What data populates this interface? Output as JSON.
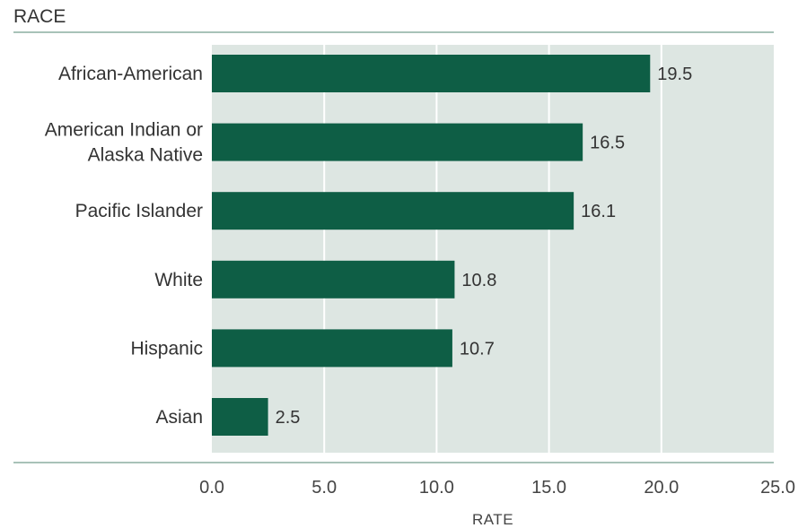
{
  "chart_data": {
    "type": "bar",
    "orientation": "horizontal",
    "categories": [
      "African-American",
      "American Indian or Alaska Native",
      "Pacific Islander",
      "White",
      "Hispanic",
      "Asian"
    ],
    "category_lines": [
      [
        "African-American"
      ],
      [
        "American Indian or",
        "Alaska Native"
      ],
      [
        "Pacific Islander"
      ],
      [
        "White"
      ],
      [
        "Hispanic"
      ],
      [
        "Asian"
      ]
    ],
    "values": [
      19.5,
      16.5,
      16.1,
      10.8,
      10.7,
      2.5
    ],
    "value_labels": [
      "19.5",
      "16.5",
      "16.1",
      "10.8",
      "10.7",
      "2.5"
    ],
    "xlabel": "RATE",
    "ylabel": "RACE",
    "xlim": [
      0,
      25
    ],
    "xticks": [
      "0.0",
      "5.0",
      "10.0",
      "15.0",
      "20.0",
      "25.0"
    ],
    "grid": true,
    "colors": {
      "bar": "#0e5e45",
      "plot_background": "#dde6e2",
      "gridline": "#ffffff",
      "rule": "#a8c2b8"
    }
  }
}
